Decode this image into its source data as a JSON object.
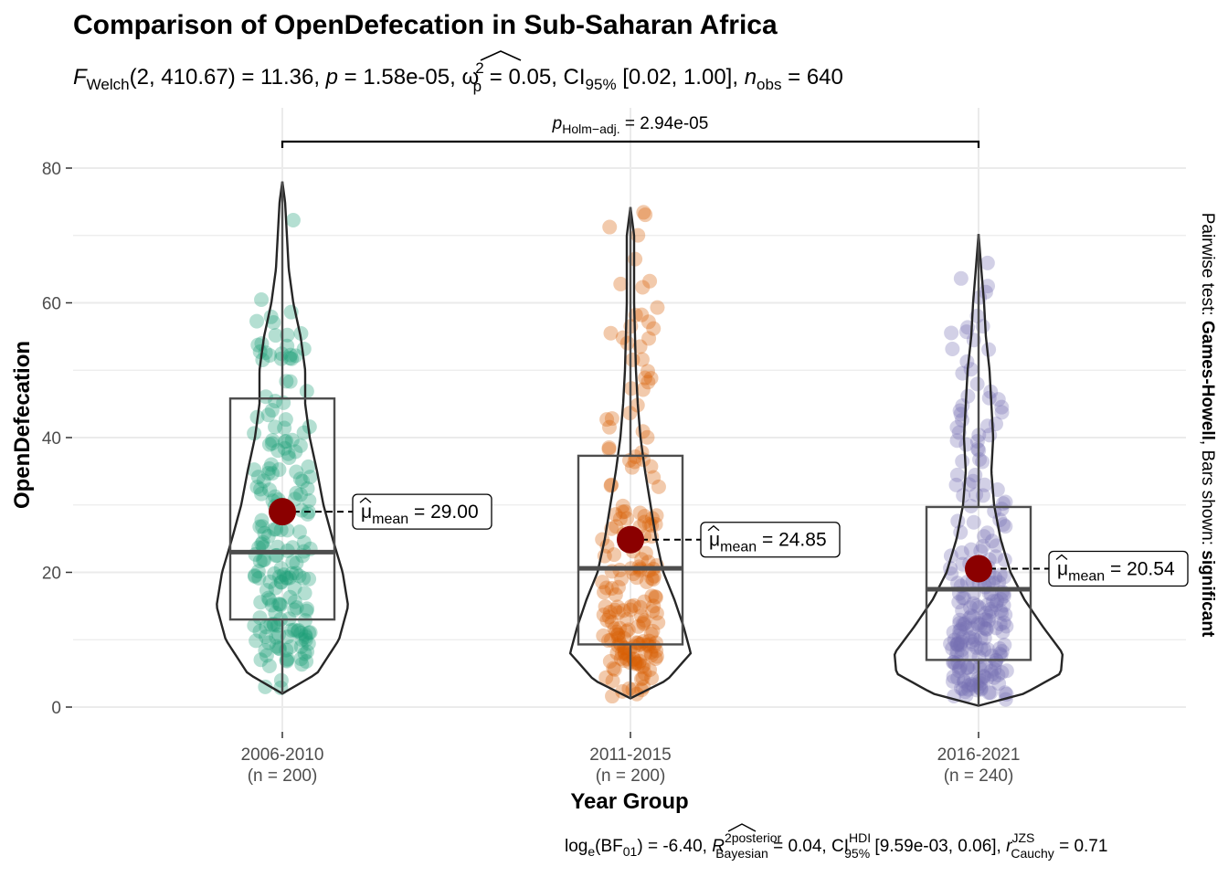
{
  "chart_data": {
    "type": "violin",
    "title": "Comparison of OpenDefecation in Sub-Saharan Africa",
    "subtitle": {
      "stat_symbol": "F",
      "stat_sub": "Welch",
      "stat_args": "(2, 410.67)",
      "stat_value": " = 11.36, ",
      "p_symbol": "p",
      "p_value": " = 1.58e-05, ",
      "es_symbol": "ω",
      "es_sup": "2",
      "es_sub": "p",
      "es_value": " = 0.05, CI",
      "ci_sub": "95%",
      "ci_value": " [0.02, 1.00], ",
      "n_symbol": "n",
      "n_sub": "obs",
      "n_value": " = 640"
    },
    "xlabel": "Year Group",
    "ylabel": "OpenDefecation",
    "ylim": [
      0,
      80
    ],
    "yticks": [
      "0",
      "20",
      "40",
      "60",
      "80"
    ],
    "categories": [
      {
        "name": "2006-2010",
        "n_label": "(n = 200)",
        "color": "#1b9e77",
        "mean": 29.0,
        "mean_label": "29.00",
        "q1": 13.0,
        "median": 23.0,
        "q3": 45.8,
        "whisker_low": 2.0,
        "whisker_high": 78.0,
        "n": 200,
        "min": 2.0,
        "max": 78.0
      },
      {
        "name": "2011-2015",
        "n_label": "(n = 200)",
        "color": "#d95f02",
        "mean": 24.85,
        "mean_label": "24.85",
        "q1": 9.3,
        "median": 20.6,
        "q3": 37.3,
        "whisker_low": 1.3,
        "whisker_high": 74.2,
        "n": 200,
        "min": 1.3,
        "max": 74.2
      },
      {
        "name": "2016-2021",
        "n_label": "(n = 240)",
        "color": "#7570b3",
        "mean": 20.54,
        "mean_label": "20.54",
        "q1": 7.0,
        "median": 17.5,
        "q3": 29.7,
        "whisker_low": 0.2,
        "whisker_high": 70.2,
        "n": 240,
        "min": 0.2,
        "max": 70.2
      }
    ],
    "mean_label_prefix": "μ",
    "mean_label_sub": "mean",
    "mean_label_eq": " = ",
    "mean_point_color": "#8b0000",
    "pairwise": {
      "from": "2006-2010",
      "to": "2016-2021",
      "label_symbol": "p",
      "label_sub": "Holm−adj.",
      "label_value": " = 2.94e-05"
    },
    "side_label": {
      "prefix": "Pairwise test: ",
      "test": "Games-Howell",
      "middle": ", Bars shown: ",
      "shown": "significant"
    },
    "caption": {
      "part1": "log",
      "part1_sub": "e",
      "part2": "(BF",
      "part2_sub": "01",
      "part3": ") = -6.40, ",
      "r2": "R",
      "r2_sup": "2",
      "r2_sup_label": "posterior",
      "r2_sub_label": "Bayesian",
      "part4": " = 0.04, CI",
      "ci_sup": "HDI",
      "ci_sub": "95%",
      "part5": " [9.59e-03, 0.06], ",
      "r": "r",
      "r_sup": "JZS",
      "r_sub": "Cauchy",
      "part6": " = 0.71"
    },
    "grid": true
  }
}
